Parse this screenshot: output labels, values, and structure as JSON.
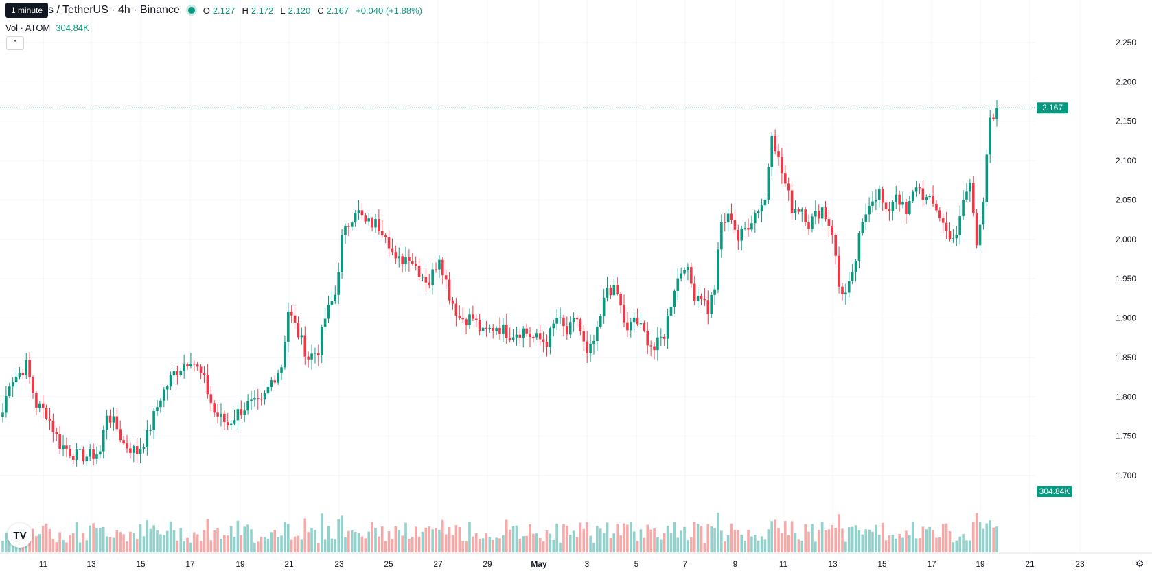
{
  "header": {
    "tooltip": "1 minute",
    "symbol_title": "s / TetherUS · 4h · Binance",
    "ohlc": {
      "o_label": "O",
      "o_value": "2.127",
      "h_label": "H",
      "h_value": "2.172",
      "l_label": "L",
      "l_value": "2.120",
      "c_label": "C",
      "c_value": "2.167",
      "change": "+0.040 (+1.88%)"
    },
    "volume_label": "Vol · ATOM",
    "volume_value": "304.84K"
  },
  "price_badge": "2.167",
  "volume_badge": "304.84K",
  "logo_text": "TV",
  "colors": {
    "up": "#089981",
    "down": "#F23645",
    "up_vol": "#92D2CC",
    "down_vol": "#F7A9A7"
  },
  "icons": {
    "collapse": "chevron-up-icon",
    "settings": "gear-icon",
    "logo": "tradingview-logo-icon"
  },
  "chart_data": {
    "type": "candlestick",
    "interval": "4h",
    "price_axis": {
      "min": 1.65,
      "max": 2.27,
      "ticks": [
        "2.250",
        "2.200",
        "2.150",
        "2.100",
        "2.050",
        "2.000",
        "1.950",
        "1.900",
        "1.850",
        "1.800",
        "1.750",
        "1.700"
      ]
    },
    "time_axis": {
      "labels": [
        "11",
        "13",
        "15",
        "17",
        "19",
        "21",
        "23",
        "25",
        "27",
        "29",
        "May",
        "3",
        "5",
        "7",
        "9",
        "11",
        "13",
        "15",
        "17",
        "19",
        "21",
        "23"
      ]
    },
    "grid": true,
    "last_price": 2.167,
    "anchors": [
      [
        0,
        1.78
      ],
      [
        2,
        1.82
      ],
      [
        5,
        1.83
      ],
      [
        7,
        1.84
      ],
      [
        10,
        1.79
      ],
      [
        13,
        1.78
      ],
      [
        17,
        1.74
      ],
      [
        22,
        1.725
      ],
      [
        26,
        1.725
      ],
      [
        29,
        1.73
      ],
      [
        31,
        1.78
      ],
      [
        34,
        1.76
      ],
      [
        36,
        1.74
      ],
      [
        40,
        1.73
      ],
      [
        43,
        1.75
      ],
      [
        47,
        1.8
      ],
      [
        51,
        1.83
      ],
      [
        56,
        1.85
      ],
      [
        60,
        1.82
      ],
      [
        63,
        1.78
      ],
      [
        67,
        1.765
      ],
      [
        70,
        1.78
      ],
      [
        73,
        1.79
      ],
      [
        77,
        1.79
      ],
      [
        80,
        1.82
      ],
      [
        83,
        1.84
      ],
      [
        85,
        1.91
      ],
      [
        88,
        1.88
      ],
      [
        91,
        1.85
      ],
      [
        94,
        1.86
      ],
      [
        96,
        1.9
      ],
      [
        99,
        1.93
      ],
      [
        101,
        2.0
      ],
      [
        105,
        2.04
      ],
      [
        108,
        2.02
      ],
      [
        111,
        2.02
      ],
      [
        114,
        2.01
      ],
      [
        117,
        1.97
      ],
      [
        121,
        1.98
      ],
      [
        124,
        1.96
      ],
      [
        127,
        1.945
      ],
      [
        130,
        1.98
      ],
      [
        133,
        1.93
      ],
      [
        136,
        1.9
      ],
      [
        140,
        1.9
      ],
      [
        143,
        1.88
      ],
      [
        147,
        1.89
      ],
      [
        151,
        1.88
      ],
      [
        155,
        1.885
      ],
      [
        158,
        1.875
      ],
      [
        162,
        1.87
      ],
      [
        165,
        1.9
      ],
      [
        168,
        1.88
      ],
      [
        171,
        1.9
      ],
      [
        174,
        1.85
      ],
      [
        177,
        1.88
      ],
      [
        180,
        1.94
      ],
      [
        183,
        1.93
      ],
      [
        186,
        1.88
      ],
      [
        188,
        1.9
      ],
      [
        191,
        1.88
      ],
      [
        194,
        1.86
      ],
      [
        197,
        1.88
      ],
      [
        200,
        1.94
      ],
      [
        203,
        1.97
      ],
      [
        206,
        1.93
      ],
      [
        208,
        1.93
      ],
      [
        210,
        1.91
      ],
      [
        212,
        1.94
      ],
      [
        214,
        2.02
      ],
      [
        217,
        2.03
      ],
      [
        219,
        2.0
      ],
      [
        222,
        2.02
      ],
      [
        225,
        2.04
      ],
      [
        227,
        2.05
      ],
      [
        229,
        2.14
      ],
      [
        231,
        2.1
      ],
      [
        233,
        2.07
      ],
      [
        235,
        2.04
      ],
      [
        238,
        2.04
      ],
      [
        240,
        2.02
      ],
      [
        242,
        2.03
      ],
      [
        244,
        2.04
      ],
      [
        247,
        2.01
      ],
      [
        249,
        1.94
      ],
      [
        251,
        1.93
      ],
      [
        253,
        1.95
      ],
      [
        255,
        2.0
      ],
      [
        258,
        2.05
      ],
      [
        261,
        2.06
      ],
      [
        263,
        2.03
      ],
      [
        266,
        2.06
      ],
      [
        269,
        2.03
      ],
      [
        272,
        2.07
      ],
      [
        275,
        2.05
      ],
      [
        278,
        2.04
      ],
      [
        281,
        2.01
      ],
      [
        284,
        2.0
      ],
      [
        286,
        2.05
      ],
      [
        288,
        2.07
      ],
      [
        290,
        2.0
      ],
      [
        292,
        2.05
      ],
      [
        294,
        2.15
      ],
      [
        296,
        2.14
      ]
    ],
    "volume_range": {
      "min": 0,
      "max": 900000
    },
    "volume_note": "volume bars shown in lower pane, last value 304.84K"
  }
}
